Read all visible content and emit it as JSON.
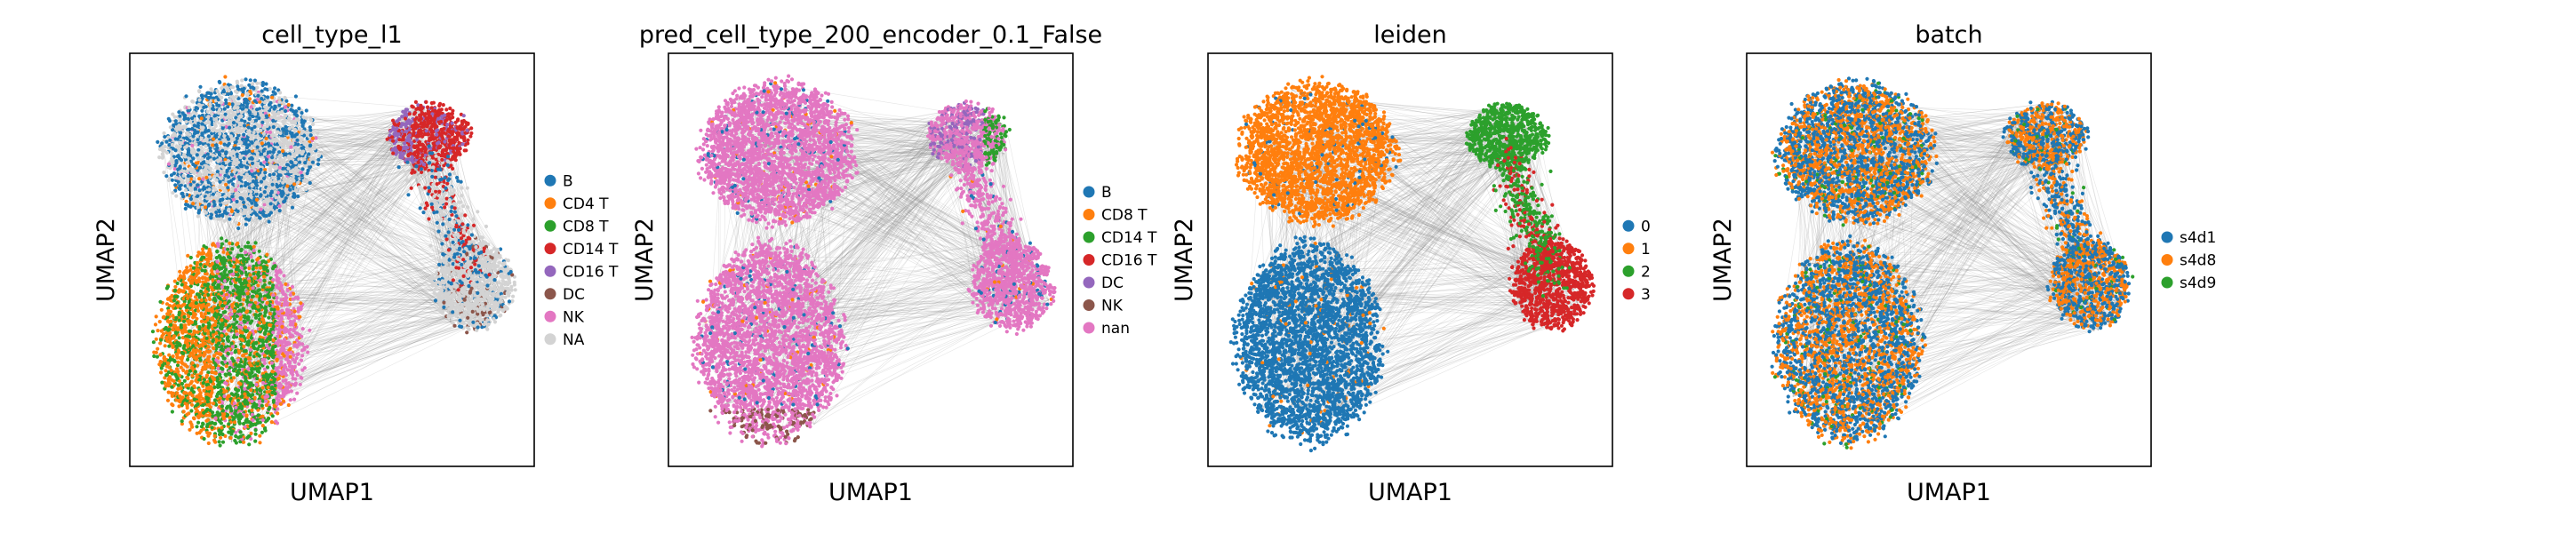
{
  "figure": {
    "panels": [
      {
        "id": "p1",
        "title": "cell_type_l1",
        "xlabel": "UMAP1",
        "ylabel": "UMAP2",
        "legend": [
          {
            "label": "B",
            "color": "#1f77b4"
          },
          {
            "label": "CD4 T",
            "color": "#ff7f0e"
          },
          {
            "label": "CD8 T",
            "color": "#2ca02c"
          },
          {
            "label": "CD14 T",
            "color": "#d62728"
          },
          {
            "label": "CD16 T",
            "color": "#9467bd"
          },
          {
            "label": "DC",
            "color": "#8c564b"
          },
          {
            "label": "NK",
            "color": "#e377c2"
          },
          {
            "label": "NA",
            "color": "#d3d3d3"
          }
        ]
      },
      {
        "id": "p2",
        "title": "pred_cell_type_200_encoder_0.1_False",
        "xlabel": "UMAP1",
        "ylabel": "UMAP2",
        "legend": [
          {
            "label": "B",
            "color": "#1f77b4"
          },
          {
            "label": "CD8 T",
            "color": "#ff7f0e"
          },
          {
            "label": "CD14 T",
            "color": "#2ca02c"
          },
          {
            "label": "CD16 T",
            "color": "#d62728"
          },
          {
            "label": "DC",
            "color": "#9467bd"
          },
          {
            "label": "NK",
            "color": "#8c564b"
          },
          {
            "label": "nan",
            "color": "#e377c2"
          }
        ]
      },
      {
        "id": "p3",
        "title": "leiden",
        "xlabel": "UMAP1",
        "ylabel": "UMAP2",
        "legend": [
          {
            "label": "0",
            "color": "#1f77b4"
          },
          {
            "label": "1",
            "color": "#ff7f0e"
          },
          {
            "label": "2",
            "color": "#2ca02c"
          },
          {
            "label": "3",
            "color": "#d62728"
          }
        ]
      },
      {
        "id": "p4",
        "title": "batch",
        "xlabel": "UMAP1",
        "ylabel": "UMAP2",
        "legend": [
          {
            "label": "s4d1",
            "color": "#1f77b4"
          },
          {
            "label": "s4d8",
            "color": "#ff7f0e"
          },
          {
            "label": "s4d9",
            "color": "#2ca02c"
          }
        ]
      }
    ]
  },
  "chart_data": [
    {
      "type": "scatter",
      "title": "cell_type_l1",
      "xlabel": "UMAP1",
      "ylabel": "UMAP2",
      "ticks": "none",
      "grid": false,
      "legend_position": "right",
      "series": [
        {
          "name": "B",
          "color": "#1f77b4",
          "region": "top-left lobe (mixed with NA)"
        },
        {
          "name": "CD4 T",
          "color": "#ff7f0e",
          "region": "bottom-left lobe, left side"
        },
        {
          "name": "CD8 T",
          "color": "#2ca02c",
          "region": "bottom-left lobe, center"
        },
        {
          "name": "CD14 T",
          "color": "#d62728",
          "region": "top-right lobe"
        },
        {
          "name": "CD16 T",
          "color": "#9467bd",
          "region": "top-right lobe, left edge"
        },
        {
          "name": "DC",
          "color": "#8c564b",
          "region": "sparse"
        },
        {
          "name": "NK",
          "color": "#e377c2",
          "region": "bottom-left lobe, right edge"
        },
        {
          "name": "NA",
          "color": "#d3d3d3",
          "region": "top-left lobe and right lobe"
        }
      ]
    },
    {
      "type": "scatter",
      "title": "pred_cell_type_200_encoder_0.1_False",
      "xlabel": "UMAP1",
      "ylabel": "UMAP2",
      "ticks": "none",
      "grid": false,
      "legend_position": "right",
      "series": [
        {
          "name": "B",
          "color": "#1f77b4",
          "region": "sparse"
        },
        {
          "name": "CD8 T",
          "color": "#ff7f0e",
          "region": "sparse"
        },
        {
          "name": "CD14 T",
          "color": "#2ca02c",
          "region": "top-right lobe tip"
        },
        {
          "name": "CD16 T",
          "color": "#d62728",
          "region": "sparse"
        },
        {
          "name": "DC",
          "color": "#9467bd",
          "region": "top-right lobe"
        },
        {
          "name": "NK",
          "color": "#8c564b",
          "region": "bottom of bottom-left lobe"
        },
        {
          "name": "nan",
          "color": "#e377c2",
          "region": "everywhere (dominant)"
        }
      ]
    },
    {
      "type": "scatter",
      "title": "leiden",
      "xlabel": "UMAP1",
      "ylabel": "UMAP2",
      "ticks": "none",
      "grid": false,
      "legend_position": "right",
      "series": [
        {
          "name": "0",
          "color": "#1f77b4",
          "region": "bottom-left lobe"
        },
        {
          "name": "1",
          "color": "#ff7f0e",
          "region": "top-left lobe"
        },
        {
          "name": "2",
          "color": "#2ca02c",
          "region": "top-right lobe"
        },
        {
          "name": "3",
          "color": "#d62728",
          "region": "right lobe"
        }
      ]
    },
    {
      "type": "scatter",
      "title": "batch",
      "xlabel": "UMAP1",
      "ylabel": "UMAP2",
      "ticks": "none",
      "grid": false,
      "legend_position": "right",
      "series": [
        {
          "name": "s4d1",
          "color": "#1f77b4",
          "region": "everywhere (mixed)"
        },
        {
          "name": "s4d8",
          "color": "#ff7f0e",
          "region": "everywhere (mixed)"
        },
        {
          "name": "s4d9",
          "color": "#2ca02c",
          "region": "everywhere (sparse)"
        }
      ]
    }
  ]
}
